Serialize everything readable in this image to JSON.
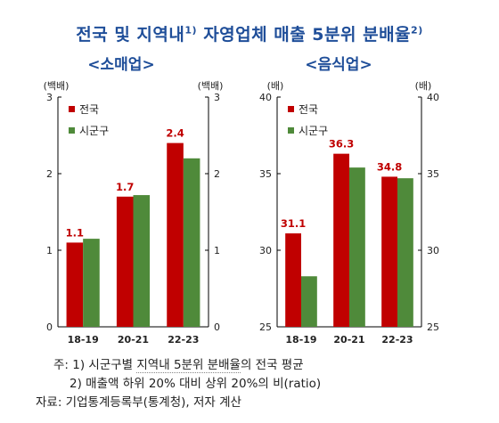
{
  "title": {
    "text": "전국 및 지역내",
    "sup1": "1)",
    "text2": "자영업체 매출 5분위 분배율",
    "sup2": "2)"
  },
  "colors": {
    "national": "#c00000",
    "regional": "#4f8a3a",
    "title": "#1f4e99"
  },
  "chart_data": [
    {
      "type": "bar",
      "title": "<소매업>",
      "categories": [
        "18-19",
        "20-21",
        "22-23"
      ],
      "series": [
        {
          "name": "전국",
          "values": [
            1.1,
            1.7,
            2.4
          ]
        },
        {
          "name": "시군구",
          "values": [
            1.15,
            1.72,
            2.2
          ]
        }
      ],
      "data_labels": [
        "1.1",
        "1.7",
        "2.4"
      ],
      "ylim": [
        0,
        3
      ],
      "yticks": [
        "0",
        "1",
        "2",
        "3"
      ],
      "ylabel_left": "(백배)",
      "ylabel_right": "(백배)",
      "legend": "top-left",
      "grid": false
    },
    {
      "type": "bar",
      "title": "<음식업>",
      "categories": [
        "18-19",
        "20-21",
        "22-23"
      ],
      "series": [
        {
          "name": "전국",
          "values": [
            31.1,
            36.3,
            34.8
          ]
        },
        {
          "name": "시군구",
          "values": [
            28.3,
            35.4,
            34.7
          ]
        }
      ],
      "data_labels": [
        "31.1",
        "36.3",
        "34.8"
      ],
      "ylim": [
        25,
        40
      ],
      "yticks": [
        "25",
        "30",
        "35",
        "40"
      ],
      "ylabel_left": "(배)",
      "ylabel_right": "(배)",
      "legend": "top-left",
      "grid": false
    }
  ],
  "notes": {
    "line1_prefix": "주: 1) 시군구별",
    "line1_dotted": "지역내 5분위 분배율",
    "line1_suffix": "의 전국 평균",
    "line2": "2) 매출액 하위 20% 대비 상위 20%의 비(ratio)",
    "line3": "자료: 기업통계등록부(통계청), 저자 계산"
  }
}
